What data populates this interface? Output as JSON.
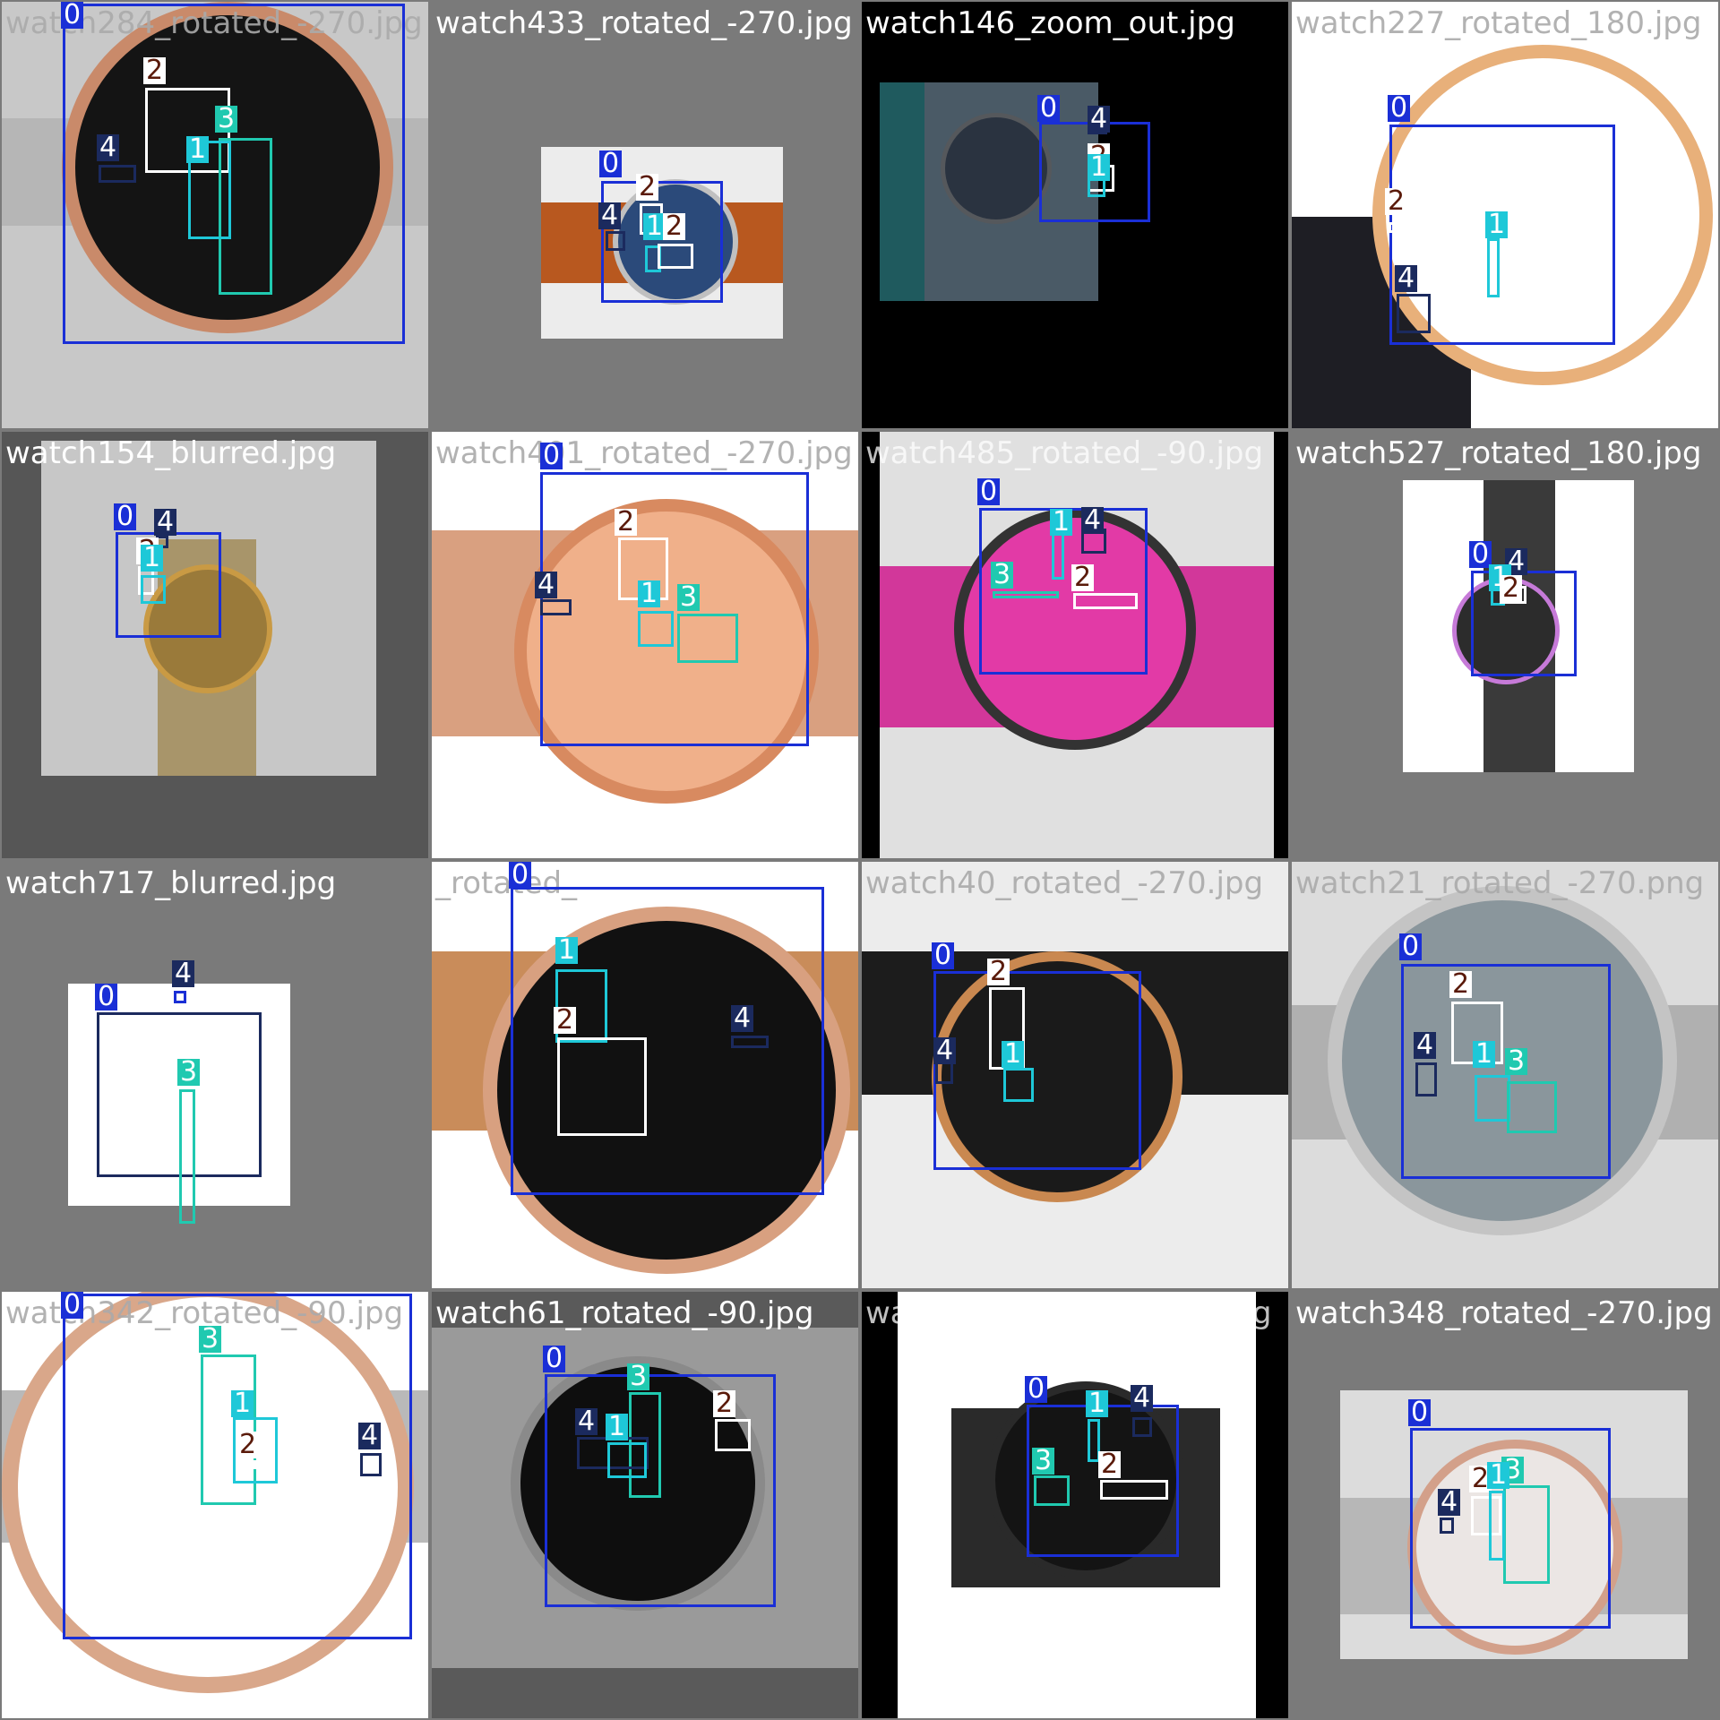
{
  "title": "",
  "class_colors": {
    "0": "#1a2fd6",
    "1": "#1ec8d8",
    "2": "#ffffff",
    "3": "#20c9b0",
    "4": "#1b2a5e"
  },
  "label_text_colors": {
    "0": "#ffffff",
    "1": "#ffffff",
    "2": "#5a1a0a",
    "3": "#ffffff",
    "4": "#ffffff"
  },
  "tiles": [
    {
      "filename": "watch284_rotated_-270.jpg",
      "bg": "#d4d4d4",
      "photo_bg": "#c8c8c8",
      "watch_color": "#141414",
      "ring_color": "#c98a6a",
      "strap_color": "#b6b6b6"
    },
    {
      "filename": "watch433_rotated_-270.jpg",
      "bg": "#7a7a7a",
      "photo_bg": "#ececec",
      "watch_color": "#2b4a7a",
      "ring_color": "#c0c0c0",
      "strap_color": "#b8581f"
    },
    {
      "filename": "watch146_zoom_out.jpg",
      "bg": "#000000",
      "photo_bg": "#4a5a66",
      "watch_color": "#2a3340",
      "ring_color": "#55585c",
      "strap_color": "#1f5a5e"
    },
    {
      "filename": "watch227_rotated_180.jpg",
      "bg": "#ffffff",
      "photo_bg": "#ffffff",
      "watch_color": "#ffffff",
      "ring_color": "#e8b07a",
      "strap_color": "#1e1e24"
    },
    {
      "filename": "watch154_blurred.jpg",
      "bg": "#565656",
      "photo_bg": "#c7c7c7",
      "watch_color": "#9a7a3a",
      "ring_color": "#c99a44",
      "strap_color": "#a8956a"
    },
    {
      "filename": "watch401_rotated_-270.jpg",
      "bg": "#ffffff",
      "photo_bg": "#ffffff",
      "watch_color": "#f0b08a",
      "ring_color": "#d88a60",
      "strap_color": "#d9a080"
    },
    {
      "filename": "watch485_rotated_-90.jpg",
      "bg": "#000000",
      "photo_bg": "#e0e0e0",
      "watch_color": "#e23aa6",
      "ring_color": "#333333",
      "strap_color": "#d2379a"
    },
    {
      "filename": "watch527_rotated_180.jpg",
      "bg": "#7a7a7a",
      "photo_bg": "#ffffff",
      "watch_color": "#2c2c2c",
      "ring_color": "#c67ad8",
      "strap_color": "#3a3a3a"
    },
    {
      "filename": "watch717_blurred.jpg",
      "bg": "#7a7a7a",
      "photo_bg": "#ffffff",
      "watch_color": "#ffffff",
      "ring_color": "#ffffff",
      "strap_color": "#ffffff"
    },
    {
      "filename": "_rotated_",
      "bg": "#ffffff",
      "photo_bg": "#ffffff",
      "watch_color": "#111111",
      "ring_color": "#d8a080",
      "strap_color": "#c98c5a"
    },
    {
      "filename": "watch40_rotated_-270.jpg",
      "bg": "#ececec",
      "photo_bg": "#ececec",
      "watch_color": "#1a1a1a",
      "ring_color": "#c98850",
      "strap_color": "#1c1c1c"
    },
    {
      "filename": "watch21_rotated_-270.png",
      "bg": "#dcdcdc",
      "photo_bg": "#dcdcdc",
      "watch_color": "#8a969c",
      "ring_color": "#c4c4c4",
      "strap_color": "#b0b0b0"
    },
    {
      "filename": "watch342_rotated_-90.jpg",
      "bg": "#ffffff",
      "photo_bg": "#ffffff",
      "watch_color": "#ffffff",
      "ring_color": "#d9a78a",
      "strap_color": "#b9b9b9"
    },
    {
      "filename": "watch61_rotated_-90.jpg",
      "bg": "#3c3c3c",
      "photo_bg": "#5a5a5a",
      "watch_color": "#0e0e0e",
      "ring_color": "#8a8a8a",
      "strap_color": "#9a9a9a"
    },
    {
      "filename": "watch468_rotated_180.jpg",
      "bg": "#000000",
      "photo_bg": "#ffffff",
      "watch_color": "#141414",
      "ring_color": "#2a2a2a",
      "strap_color": "#2a2a2a"
    },
    {
      "filename": "watch348_rotated_-270.jpg",
      "bg": "#7a7a7a",
      "photo_bg": "#dcdcdc",
      "watch_color": "#ebe6e4",
      "ring_color": "#d3a08a",
      "strap_color": "#b7b7b7"
    }
  ],
  "detections": [
    [
      {
        "c": 0
      },
      {
        "c": 2
      },
      {
        "c": 3
      },
      {
        "c": 4
      },
      {
        "c": 1
      }
    ],
    [
      {
        "c": 0
      },
      {
        "c": 2
      },
      {
        "c": 4
      },
      {
        "c": 1
      },
      {
        "c": 2
      }
    ],
    [
      {
        "c": 0
      },
      {
        "c": 4
      },
      {
        "c": 2
      },
      {
        "c": 1
      }
    ],
    [
      {
        "c": 0
      },
      {
        "c": 2
      },
      {
        "c": 1
      },
      {
        "c": 4
      }
    ],
    [
      {
        "c": 0
      },
      {
        "c": 4
      },
      {
        "c": 2
      },
      {
        "c": 1
      }
    ],
    [
      {
        "c": 0
      },
      {
        "c": 2
      },
      {
        "c": 4
      },
      {
        "c": 1
      },
      {
        "c": 3
      }
    ],
    [
      {
        "c": 0
      },
      {
        "c": 1
      },
      {
        "c": 4
      },
      {
        "c": 3
      },
      {
        "c": 2
      }
    ],
    [
      {
        "c": 0
      },
      {
        "c": 4
      },
      {
        "c": 1
      },
      {
        "c": 2
      }
    ],
    [
      {
        "c": 4
      },
      {
        "c": 0
      },
      {
        "c": 3
      }
    ],
    [
      {
        "c": 0
      },
      {
        "c": 1
      },
      {
        "c": 2
      },
      {
        "c": 4
      }
    ],
    [
      {
        "c": 0
      },
      {
        "c": 2
      },
      {
        "c": 4
      },
      {
        "c": 1
      }
    ],
    [
      {
        "c": 0
      },
      {
        "c": 2
      },
      {
        "c": 4
      },
      {
        "c": 1
      },
      {
        "c": 3
      }
    ],
    [
      {
        "c": 0
      },
      {
        "c": 3
      },
      {
        "c": 1
      },
      {
        "c": 2
      },
      {
        "c": 4
      }
    ],
    [
      {
        "c": 0
      },
      {
        "c": 3
      },
      {
        "c": 4
      },
      {
        "c": 2
      },
      {
        "c": 1
      }
    ],
    [
      {
        "c": 0
      },
      {
        "c": 1
      },
      {
        "c": 4
      },
      {
        "c": 3
      },
      {
        "c": 2
      }
    ],
    [
      {
        "c": 0
      },
      {
        "c": 2
      },
      {
        "c": 3
      },
      {
        "c": 4
      },
      {
        "c": 1
      }
    ]
  ]
}
